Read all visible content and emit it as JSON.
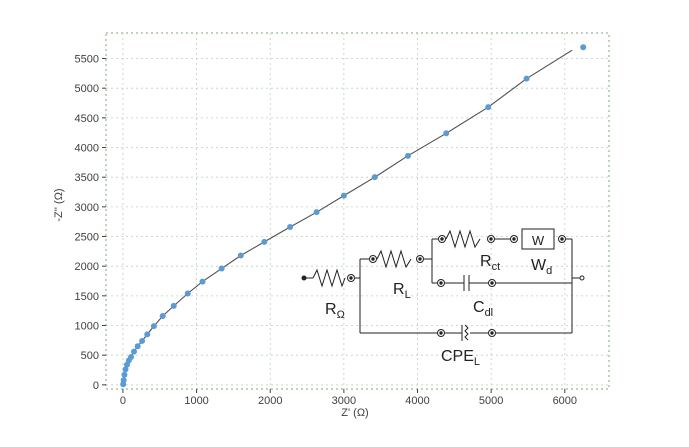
{
  "chart_data": {
    "type": "scatter",
    "xlabel": "Z' (Ω)",
    "ylabel": "-Z'' (Ω)",
    "xlim": [
      -230,
      6600
    ],
    "ylim": [
      -70,
      5930
    ],
    "x_ticks": [
      0,
      1000,
      2000,
      3000,
      4000,
      5000,
      6000
    ],
    "y_ticks": [
      0,
      500,
      1000,
      1500,
      2000,
      2500,
      3000,
      3500,
      4000,
      4500,
      5000,
      5500
    ],
    "grid": true,
    "marker_color": "#5b9bd5",
    "fit_line_color": "#505050",
    "series": [
      {
        "role": "measured",
        "x": [
          3,
          10,
          20,
          35,
          55,
          80,
          110,
          150,
          200,
          260,
          330,
          420,
          540,
          690,
          880,
          1080,
          1340,
          1600,
          1920,
          2270,
          2630,
          3000,
          3420,
          3870,
          4390,
          4960,
          5480,
          6250
        ],
        "y": [
          10,
          80,
          170,
          260,
          340,
          410,
          470,
          560,
          650,
          740,
          850,
          990,
          1160,
          1330,
          1540,
          1740,
          1960,
          2180,
          2410,
          2660,
          2910,
          3190,
          3500,
          3860,
          4240,
          4680,
          5160,
          5690
        ]
      },
      {
        "role": "fit",
        "x": [
          3,
          10,
          20,
          35,
          55,
          80,
          110,
          150,
          200,
          260,
          330,
          420,
          540,
          690,
          880,
          1080,
          1340,
          1600,
          1920,
          2270,
          2630,
          3000,
          3420,
          3870,
          4390,
          4960,
          5480,
          6100
        ],
        "y": [
          10,
          80,
          170,
          260,
          340,
          410,
          470,
          560,
          650,
          740,
          850,
          990,
          1160,
          1330,
          1540,
          1740,
          1960,
          2180,
          2410,
          2660,
          2910,
          3190,
          3500,
          3860,
          4240,
          4680,
          5160,
          5640
        ]
      }
    ],
    "circuit": {
      "labels": [
        {
          "main": "R",
          "sub": "Ω"
        },
        {
          "main": "R",
          "sub": "L"
        },
        {
          "main": "R",
          "sub": "ct"
        },
        {
          "main": "W",
          "sub": "d"
        },
        {
          "main": "C",
          "sub": "dl"
        },
        {
          "main": "CPE",
          "sub": "L"
        }
      ],
      "warburg_box_text": "W"
    }
  }
}
